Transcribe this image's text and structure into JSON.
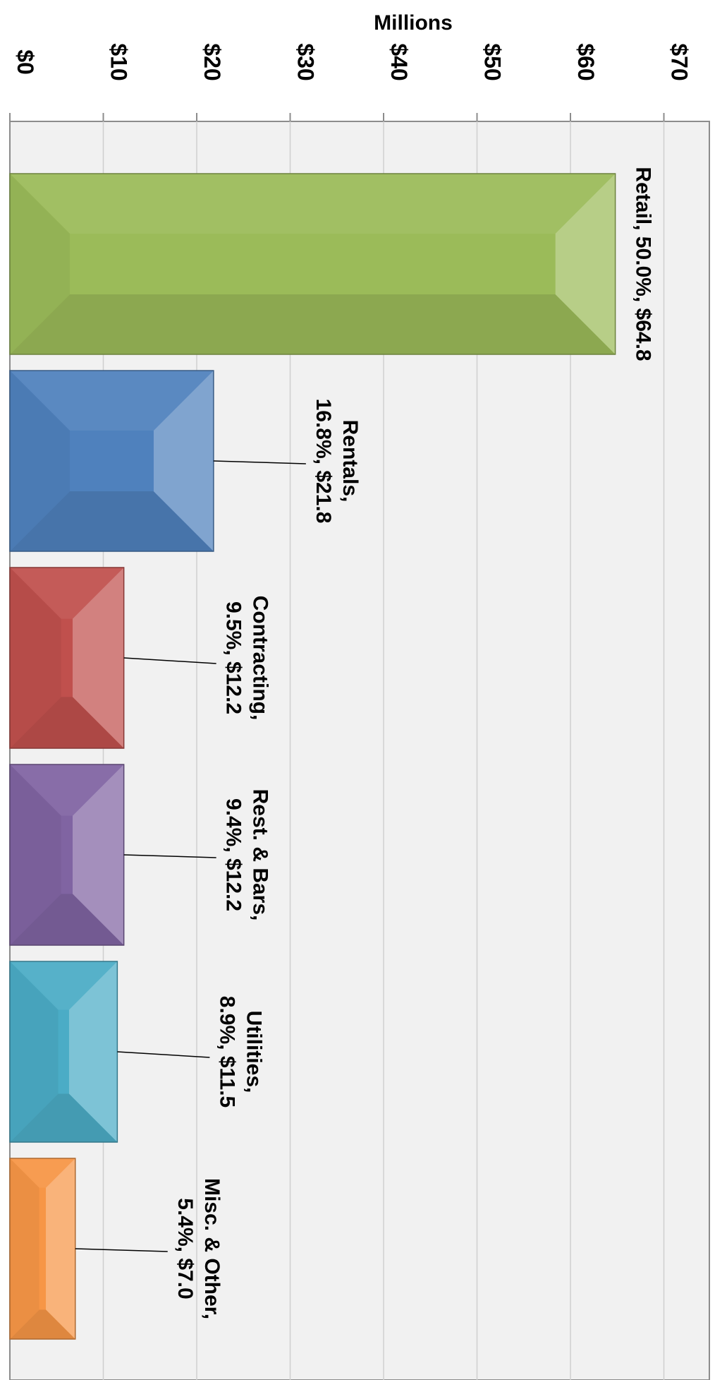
{
  "chart_data": {
    "type": "bar",
    "orientation": "horizontal",
    "value_axis": {
      "title": "Millions",
      "range": [
        0,
        70
      ],
      "ticks": [
        0,
        10,
        20,
        30,
        40,
        50,
        60,
        70
      ],
      "tick_labels": [
        "$0",
        "$10",
        "$20",
        "$30",
        "$40",
        "$50",
        "$60",
        "$70"
      ]
    },
    "grid": true,
    "legend": "none",
    "categories": [
      "Retail",
      "Rentals",
      "Contracting",
      "Rest. & Bars",
      "Utilities",
      "Misc. & Other"
    ],
    "values": [
      64.8,
      21.8,
      12.2,
      12.2,
      11.5,
      7.0
    ],
    "percents": [
      "50.0%",
      "16.8%",
      "9.5%",
      "9.4%",
      "8.9%",
      "5.4%"
    ],
    "data_labels": [
      [
        "Retail, 50.0%, $64.8"
      ],
      [
        "Rentals,",
        "16.8%, $21.8"
      ],
      [
        "Contracting,",
        "9.5%, $12.2"
      ],
      [
        "Rest. & Bars,",
        "9.4%, $12.2"
      ],
      [
        "Utilities,",
        "8.9%, $11.5"
      ],
      [
        "Misc. & Other,",
        "5.4%, $7.0"
      ]
    ],
    "colors": [
      "#9bbb59",
      "#4f81bd",
      "#c0504d",
      "#8064a2",
      "#4bacc6",
      "#f79646"
    ]
  }
}
